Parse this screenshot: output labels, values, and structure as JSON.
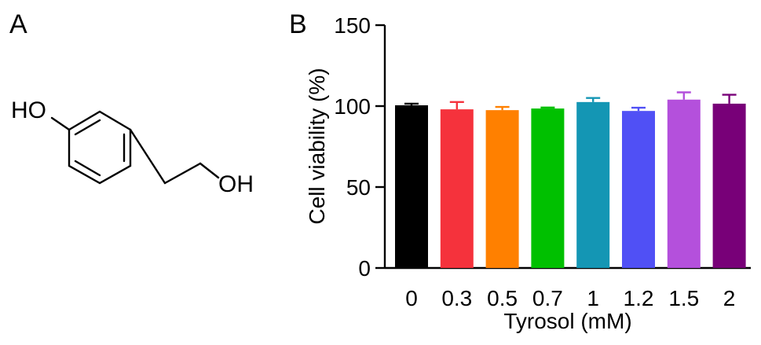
{
  "panels": {
    "a_label": "A",
    "b_label": "B"
  },
  "structure": {
    "hydroxyl_phenol": "HO",
    "hydroxyl_alcohol": "OH"
  },
  "chart_data": {
    "type": "bar",
    "title": "",
    "xlabel": "Tyrosol (mM)",
    "ylabel": "Cell viability (%)",
    "ylim": [
      0,
      150
    ],
    "yticks": [
      0,
      50,
      100,
      150
    ],
    "categories": [
      "0",
      "0.3",
      "0.5",
      "0.7",
      "1",
      "1.2",
      "1.5",
      "2"
    ],
    "values": [
      100.5,
      98,
      97.5,
      98.5,
      102.5,
      97,
      104,
      101.5
    ],
    "errors": [
      1.0,
      4.5,
      2.0,
      0.6,
      2.5,
      2.0,
      4.5,
      5.5
    ],
    "colors": [
      "#000000",
      "#f5323c",
      "#ff8000",
      "#00c000",
      "#1496b4",
      "#5050f5",
      "#b450dc",
      "#780078"
    ],
    "grid": false,
    "legend": "none"
  }
}
